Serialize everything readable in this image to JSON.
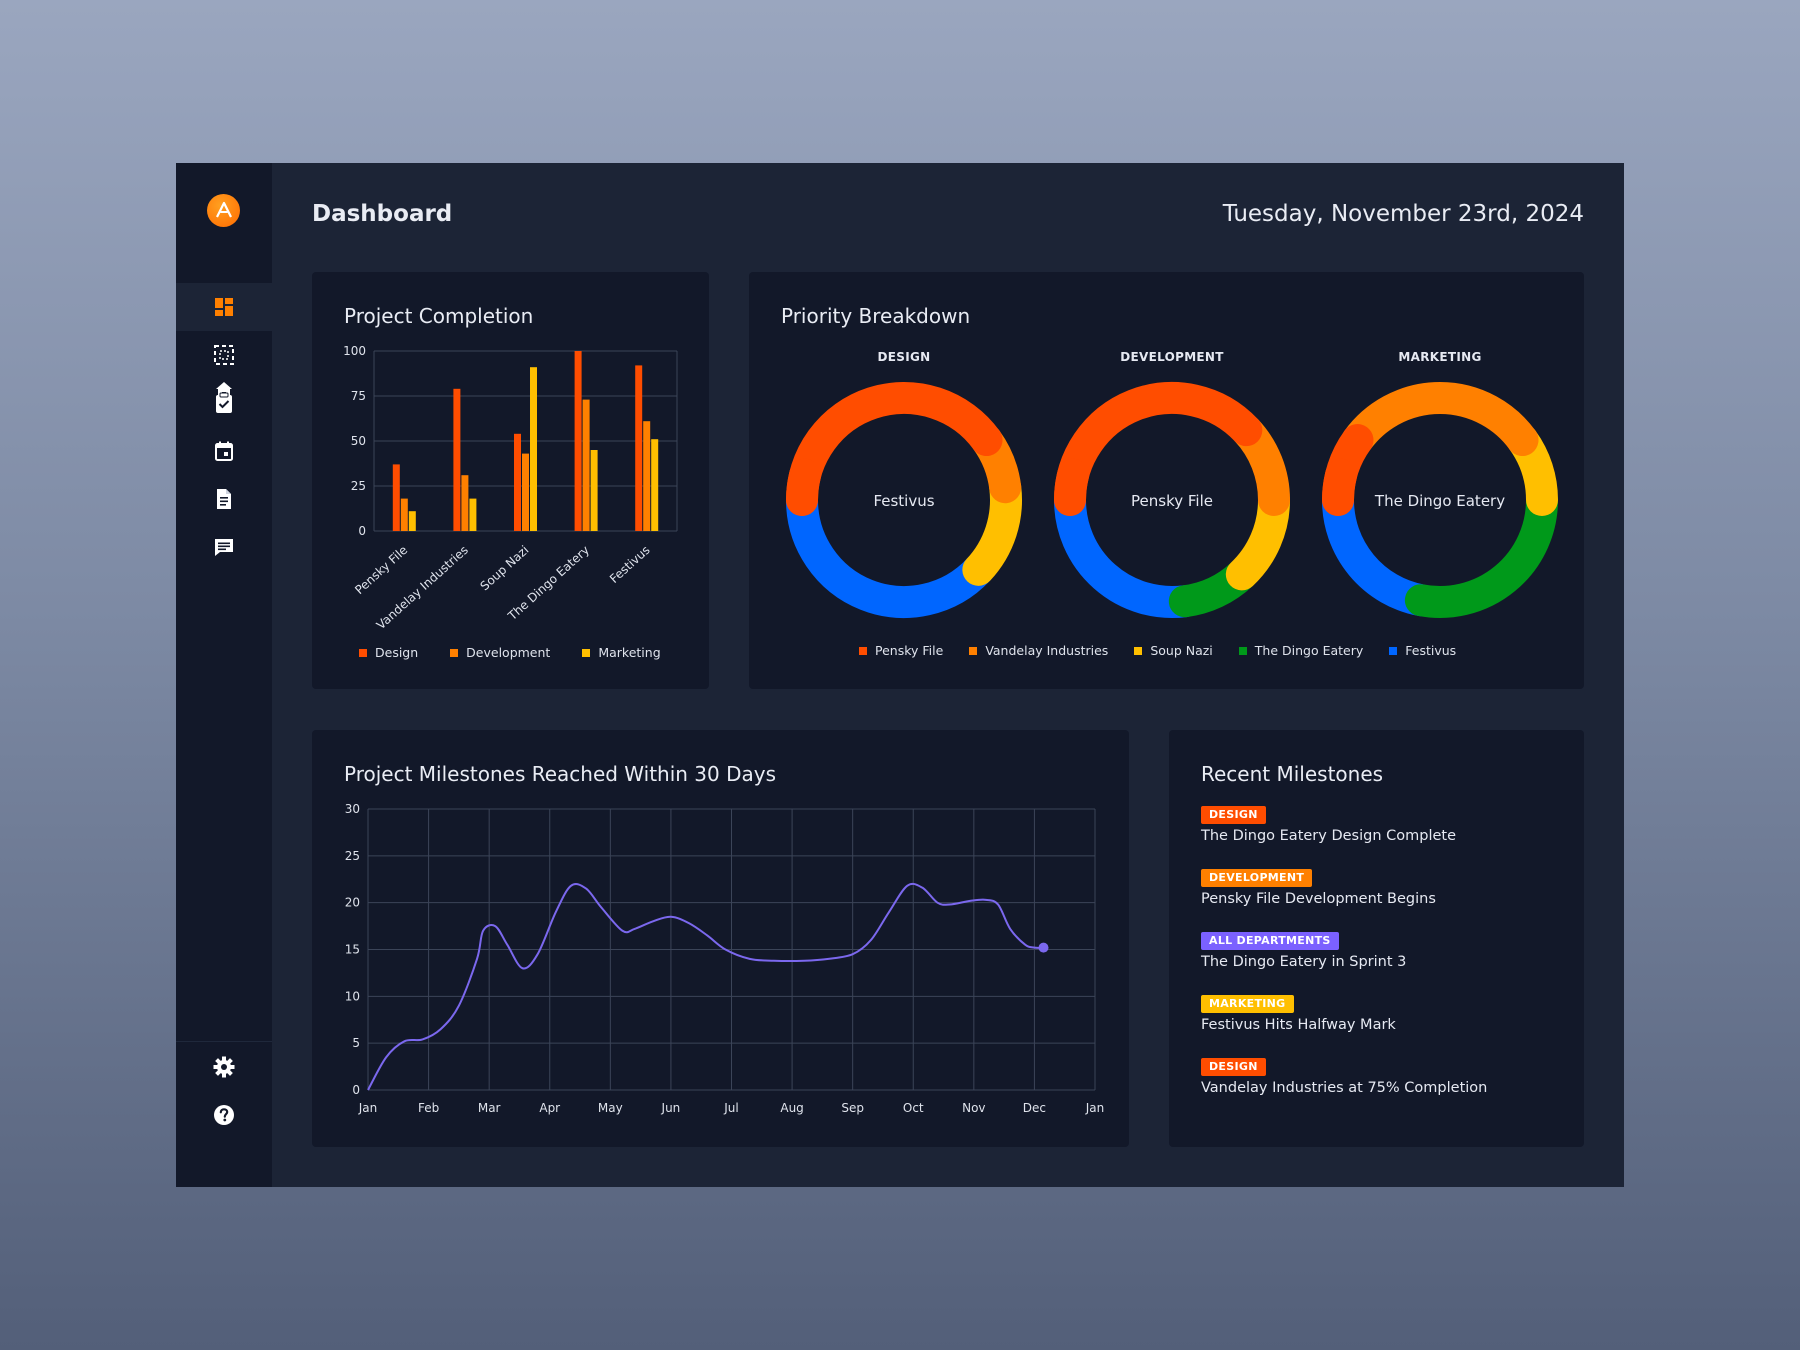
{
  "header": {
    "title": "Dashboard",
    "date": "Tuesday, November 23rd, 2024"
  },
  "sidebar": {
    "logo_icon": "logo-a-icon",
    "items": [
      {
        "icon": "home-icon",
        "active": false
      },
      {
        "icon": "dashboard-grid-icon",
        "active": true
      },
      {
        "icon": "dashed-select-icon",
        "active": false
      },
      {
        "icon": "clipboard-check-icon",
        "active": false
      },
      {
        "icon": "calendar-icon",
        "active": false
      },
      {
        "icon": "document-icon",
        "active": false
      },
      {
        "icon": "chat-icon",
        "active": false
      }
    ],
    "bottom_items": [
      {
        "icon": "gear-icon"
      },
      {
        "icon": "help-icon"
      }
    ]
  },
  "colors": {
    "design": "#ff4d00",
    "development": "#ff8000",
    "marketing": "#ffbf00",
    "dingo": "#00991a",
    "festivus": "#0066ff",
    "accent_purple": "#7b68ee",
    "all_departments": "#7b61ff"
  },
  "project_completion": {
    "title": "Project Completion",
    "chart_data": {
      "type": "bar",
      "categories": [
        "Pensky File",
        "Vandelay Industries",
        "Soup Nazi",
        "The Dingo Eatery",
        "Festivus"
      ],
      "series": [
        {
          "name": "Design",
          "values": [
            37,
            79,
            54,
            100,
            92
          ],
          "color": "#ff4d00"
        },
        {
          "name": "Development",
          "values": [
            18,
            31,
            43,
            73,
            61
          ],
          "color": "#ff8000"
        },
        {
          "name": "Marketing",
          "values": [
            11,
            18,
            91,
            45,
            51
          ],
          "color": "#ffbf00"
        }
      ],
      "ylim": [
        0,
        100
      ],
      "yticks": [
        "0",
        "25",
        "50",
        "75",
        "100"
      ],
      "legend_position": "bottom"
    }
  },
  "priority_breakdown": {
    "title": "Priority Breakdown",
    "legend": [
      "Pensky File",
      "Vandelay Industries",
      "Soup Nazi",
      "The Dingo Eatery",
      "Festivus"
    ],
    "chart_data": [
      {
        "type": "pie",
        "title": "DESIGN",
        "center_label": "Festivus",
        "labels": [
          "Pensky File",
          "Vandelay Industries",
          "Soup Nazi",
          "Festivus"
        ],
        "values": [
          40,
          8,
          14,
          38
        ]
      },
      {
        "type": "pie",
        "title": "DEVELOPMENT",
        "center_label": "Pensky File",
        "labels": [
          "Pensky File",
          "Vandelay Industries",
          "Soup Nazi",
          "The Dingo Eatery",
          "Festivus"
        ],
        "values": [
          38,
          12,
          13,
          10,
          27
        ]
      },
      {
        "type": "pie",
        "title": "MARKETING",
        "center_label": "The Dingo Eatery",
        "labels": [
          "Pensky File",
          "Vandelay Industries",
          "Soup Nazi",
          "The Dingo Eatery",
          "Festivus"
        ],
        "values": [
          10,
          30,
          10,
          28,
          22
        ]
      }
    ]
  },
  "milestones_chart": {
    "title": "Project Milestones Reached Within 30 Days",
    "chart_data": {
      "type": "line",
      "x": [
        "Jan",
        "Feb",
        "Mar",
        "Apr",
        "May",
        "Jun",
        "Jul",
        "Aug",
        "Sep",
        "Oct",
        "Nov",
        "Dec",
        "Jan"
      ],
      "series": [
        {
          "x": [
            0,
            0.3,
            0.6,
            0.9,
            1.2,
            1.5,
            1.8,
            1.9,
            2.1,
            2.3,
            2.55,
            2.8,
            3.1,
            3.35,
            3.6,
            3.85,
            4.2,
            4.4,
            4.7,
            5.0,
            5.3,
            5.6,
            5.9,
            6.3,
            6.7,
            7.2,
            7.6,
            8.0,
            8.3,
            8.6,
            8.9,
            9.15,
            9.4,
            9.6,
            9.95,
            10.2,
            10.4,
            10.6,
            10.85,
            11.0,
            11.15
          ],
          "y": [
            0,
            3.5,
            5.2,
            5.4,
            6.5,
            9,
            14,
            17,
            17.5,
            15.5,
            13,
            14.5,
            19,
            21.8,
            21.5,
            19.5,
            17,
            17.2,
            18,
            18.5,
            17.8,
            16.5,
            15,
            14,
            13.8,
            13.8,
            14,
            14.5,
            16,
            19,
            21.8,
            21.6,
            20,
            19.8,
            20.2,
            20.3,
            19.8,
            17.2,
            15.5,
            15.2,
            15.2
          ]
        }
      ],
      "ylim": [
        0,
        30
      ],
      "yticks": [
        "0",
        "5",
        "10",
        "15",
        "20",
        "25",
        "30"
      ],
      "grid": true,
      "color": "#7b68ee"
    }
  },
  "recent_milestones": {
    "title": "Recent Milestones",
    "items": [
      {
        "badge": "DESIGN",
        "color": "#ff4d00",
        "text": "The Dingo Eatery Design Complete"
      },
      {
        "badge": "DEVELOPMENT",
        "color": "#ff8000",
        "text": "Pensky File Development Begins"
      },
      {
        "badge": "ALL DEPARTMENTS",
        "color": "#7b61ff",
        "text": "The Dingo Eatery  in Sprint 3"
      },
      {
        "badge": "MARKETING",
        "color": "#ffbf00",
        "text": "Festivus Hits Halfway Mark"
      },
      {
        "badge": "DESIGN",
        "color": "#ff4d00",
        "text": "Vandelay Industries at 75% Completion"
      }
    ]
  }
}
